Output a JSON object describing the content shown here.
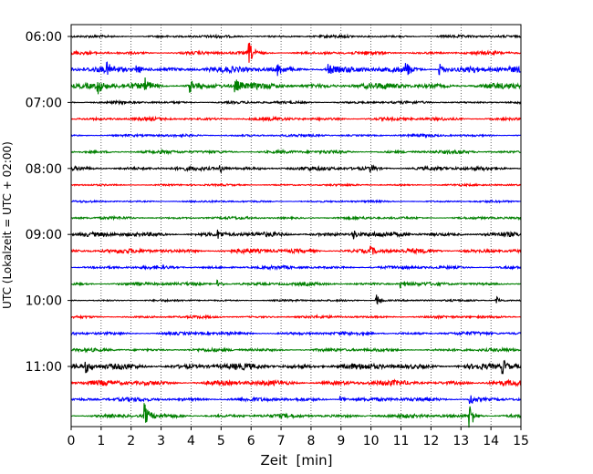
{
  "chart_data": {
    "type": "line",
    "title": "",
    "xlabel": "Zeit  [min]",
    "ylabel": "UTC (Lokalzeit = UTC + 02:00)",
    "xlim": [
      0,
      15
    ],
    "x_ticks": [
      0,
      1,
      2,
      3,
      4,
      5,
      6,
      7,
      8,
      9,
      10,
      11,
      12,
      13,
      14,
      15
    ],
    "x_grid": "dotted vertical lines at each minute",
    "y_tick_labels": [
      "06:00",
      "07:00",
      "08:00",
      "09:00",
      "10:00",
      "11:00"
    ],
    "trace_interval_minutes": 15,
    "first_trace": "06:00",
    "trace_colors": [
      "#000000",
      "#ff0000",
      "#0000ff",
      "#008000"
    ],
    "traces": [
      {
        "start": "06:00",
        "color": "#000000",
        "amplitude": 0.2
      },
      {
        "start": "06:15",
        "color": "#ff0000",
        "amplitude": 0.25,
        "events": [
          {
            "t": 5.95,
            "amp": 1.3
          }
        ]
      },
      {
        "start": "06:30",
        "color": "#0000ff",
        "amplitude": 0.45,
        "events": [
          {
            "t": 1.2,
            "amp": 0.6
          },
          {
            "t": 2.2,
            "amp": 0.6
          },
          {
            "t": 6.9,
            "amp": 0.7
          },
          {
            "t": 8.6,
            "amp": 0.7
          },
          {
            "t": 11.2,
            "amp": 0.8
          },
          {
            "t": 12.3,
            "amp": 0.8
          },
          {
            "t": 13.3,
            "amp": 0.6
          }
        ]
      },
      {
        "start": "06:45",
        "color": "#008000",
        "amplitude": 0.45,
        "events": [
          {
            "t": 0.9,
            "amp": 0.9
          },
          {
            "t": 2.5,
            "amp": 0.8
          },
          {
            "t": 4.0,
            "amp": 0.8
          },
          {
            "t": 5.5,
            "amp": 0.8
          }
        ]
      },
      {
        "start": "07:00",
        "color": "#000000",
        "amplitude": 0.2
      },
      {
        "start": "07:15",
        "color": "#ff0000",
        "amplitude": 0.25
      },
      {
        "start": "07:30",
        "color": "#0000ff",
        "amplitude": 0.2
      },
      {
        "start": "07:45",
        "color": "#008000",
        "amplitude": 0.25
      },
      {
        "start": "08:00",
        "color": "#000000",
        "amplitude": 0.3,
        "events": [
          {
            "t": 5.0,
            "amp": 0.5
          },
          {
            "t": 10.0,
            "amp": 0.4
          }
        ]
      },
      {
        "start": "08:15",
        "color": "#ff0000",
        "amplitude": 0.15
      },
      {
        "start": "08:30",
        "color": "#0000ff",
        "amplitude": 0.15
      },
      {
        "start": "08:45",
        "color": "#008000",
        "amplitude": 0.2
      },
      {
        "start": "09:00",
        "color": "#000000",
        "amplitude": 0.35,
        "events": [
          {
            "t": 4.9,
            "amp": 0.5
          },
          {
            "t": 9.4,
            "amp": 0.7
          }
        ]
      },
      {
        "start": "09:15",
        "color": "#ff0000",
        "amplitude": 0.35,
        "events": [
          {
            "t": 10.0,
            "amp": 0.5
          }
        ]
      },
      {
        "start": "09:30",
        "color": "#0000ff",
        "amplitude": 0.25
      },
      {
        "start": "09:45",
        "color": "#008000",
        "amplitude": 0.25,
        "events": [
          {
            "t": 4.9,
            "amp": 0.6
          },
          {
            "t": 11.0,
            "amp": 0.7
          }
        ]
      },
      {
        "start": "10:00",
        "color": "#000000",
        "amplitude": 0.15,
        "events": [
          {
            "t": 10.2,
            "amp": 0.9
          },
          {
            "t": 14.2,
            "amp": 0.5
          }
        ]
      },
      {
        "start": "10:15",
        "color": "#ff0000",
        "amplitude": 0.2
      },
      {
        "start": "10:30",
        "color": "#0000ff",
        "amplitude": 0.25
      },
      {
        "start": "10:45",
        "color": "#008000",
        "amplitude": 0.25
      },
      {
        "start": "11:00",
        "color": "#000000",
        "amplitude": 0.45,
        "events": [
          {
            "t": 0.5,
            "amp": 0.7
          },
          {
            "t": 14.4,
            "amp": 0.9
          }
        ]
      },
      {
        "start": "11:15",
        "color": "#ff0000",
        "amplitude": 0.4
      },
      {
        "start": "11:30",
        "color": "#0000ff",
        "amplitude": 0.3,
        "events": [
          {
            "t": 9.0,
            "amp": 0.5
          },
          {
            "t": 13.3,
            "amp": 1.0
          }
        ]
      },
      {
        "start": "11:45",
        "color": "#008000",
        "amplitude": 0.3,
        "events": [
          {
            "t": 2.45,
            "amp": 1.6
          },
          {
            "t": 13.3,
            "amp": 1.8
          }
        ]
      }
    ]
  }
}
